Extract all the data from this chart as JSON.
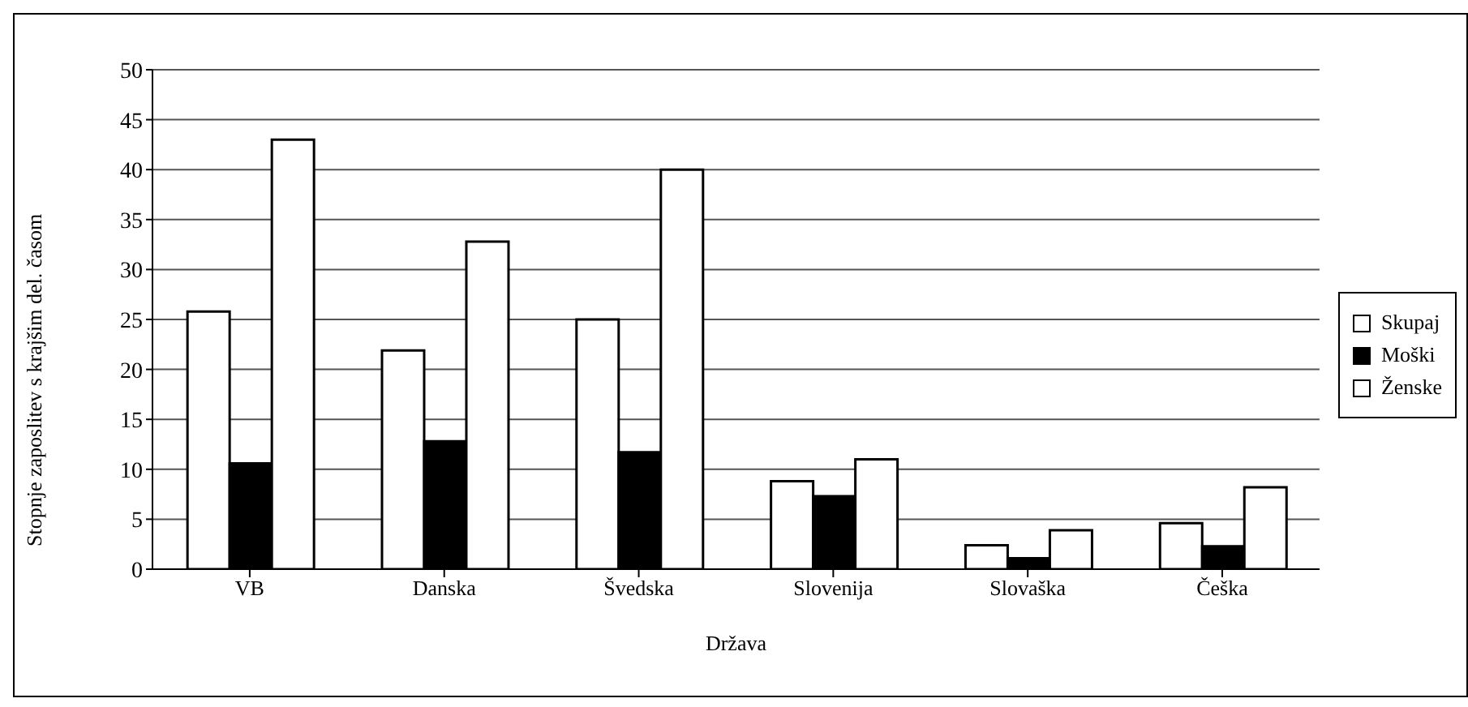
{
  "chart_data": {
    "type": "bar",
    "xlabel": "Država",
    "ylabel": "Stopnje  zaposlitev s krajšim del. časom",
    "categories": [
      "VB",
      "Danska",
      "Švedska",
      "Slovenija",
      "Slovaška",
      "Češka"
    ],
    "series": [
      {
        "name": "Skupaj",
        "color": "#ffffff",
        "values": [
          25.8,
          21.9,
          25.0,
          8.8,
          2.4,
          4.6
        ]
      },
      {
        "name": "Moški",
        "color": "#000000",
        "values": [
          10.6,
          12.8,
          11.7,
          7.3,
          1.1,
          2.3
        ]
      },
      {
        "name": "Ženske",
        "color": "#ffffff",
        "values": [
          43.0,
          32.8,
          40.0,
          11.0,
          3.9,
          8.2
        ]
      }
    ],
    "ylim": [
      0,
      50
    ],
    "yticks": [
      0,
      5,
      10,
      15,
      20,
      25,
      30,
      35,
      40,
      45,
      50
    ],
    "grid": "y",
    "legend": "right"
  }
}
